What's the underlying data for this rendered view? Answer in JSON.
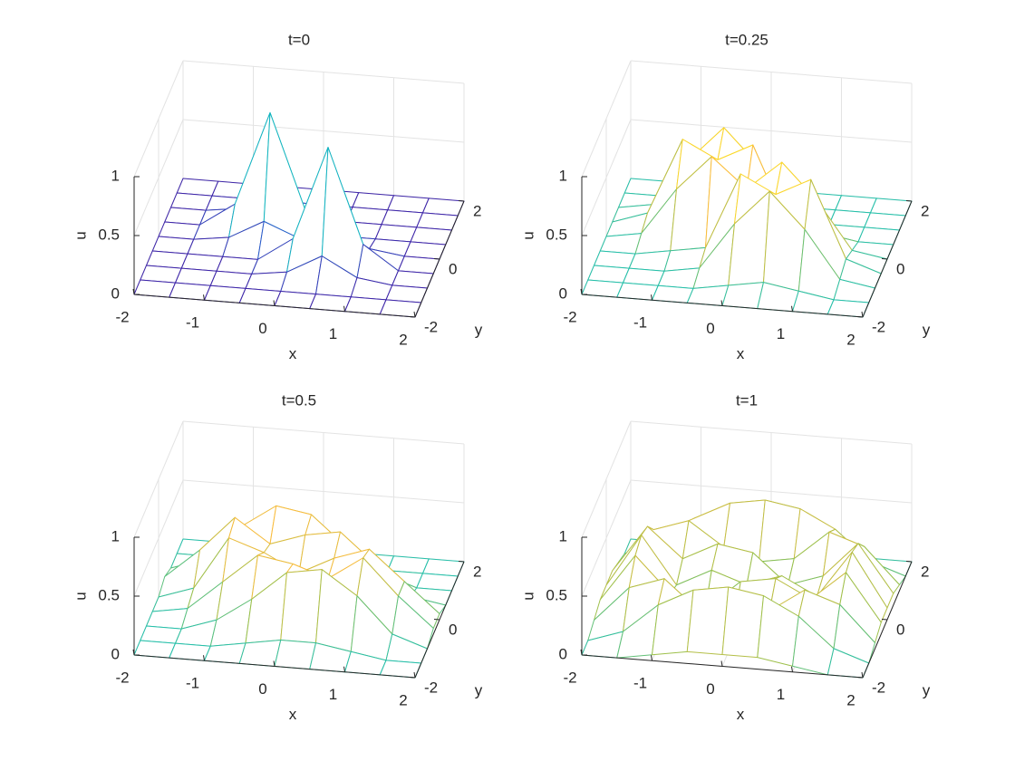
{
  "chart_data": [
    {
      "type": "mesh",
      "title": "t=0",
      "xlabel": "x",
      "ylabel": "y",
      "zlabel": "u",
      "x": [
        -2,
        -1.5,
        -1,
        -0.5,
        0,
        0.5,
        1,
        1.5,
        2
      ],
      "y": [
        -2,
        -1.5,
        -1,
        -0.5,
        0,
        0.5,
        1,
        1.5,
        2
      ],
      "z": [
        [
          0,
          0,
          0,
          0,
          0,
          0,
          0,
          0,
          0
        ],
        [
          0,
          0,
          0,
          0,
          0,
          0,
          0,
          0,
          0
        ],
        [
          0,
          0,
          0,
          0,
          0.04,
          0.2,
          0.04,
          0,
          0
        ],
        [
          0,
          0,
          0,
          0,
          0.2,
          1,
          0.2,
          0,
          0
        ],
        [
          0,
          0,
          0.04,
          0.2,
          0.08,
          0.2,
          0.04,
          0,
          0
        ],
        [
          0,
          0,
          0.2,
          1,
          0.2,
          0,
          0,
          0,
          0
        ],
        [
          0,
          0,
          0.04,
          0.2,
          0.04,
          0,
          0,
          0,
          0
        ],
        [
          0,
          0,
          0,
          0,
          0,
          0,
          0,
          0,
          0
        ],
        [
          0,
          0,
          0,
          0,
          0,
          0,
          0,
          0,
          0
        ]
      ],
      "xlim": [
        -2,
        2
      ],
      "ylim": [
        -2,
        2
      ],
      "zlim": [
        0,
        1
      ],
      "xticks": [
        -2,
        -1,
        0,
        1,
        2
      ],
      "yticks": [
        -2,
        0,
        2
      ],
      "zticks": [
        0,
        0.5,
        1
      ],
      "clim": [
        0,
        1
      ],
      "grid": true,
      "colormap": [
        "#3e26a8",
        "#1f83e0",
        "#12bfb9",
        "#9bc04b",
        "#fcbc3d",
        "#f9fb15"
      ]
    },
    {
      "type": "mesh",
      "title": "t=0.25",
      "xlabel": "x",
      "ylabel": "y",
      "zlabel": "u",
      "x": [
        -2,
        -1.5,
        -1,
        -0.5,
        0,
        0.5,
        1,
        1.5,
        2
      ],
      "y": [
        -2,
        -1.5,
        -1,
        -0.5,
        0,
        0.5,
        1,
        1.5,
        2
      ],
      "z": [
        [
          0,
          0,
          0,
          0,
          0,
          0,
          0,
          0,
          0
        ],
        [
          0,
          0,
          0,
          0,
          0.05,
          0.1,
          0.05,
          0,
          0
        ],
        [
          0,
          0,
          0,
          0.05,
          0.45,
          0.75,
          0.45,
          0.05,
          0
        ],
        [
          0,
          0,
          0.05,
          0.1,
          0.75,
          0.6,
          0.75,
          0.1,
          0
        ],
        [
          0,
          0.05,
          0.45,
          0.75,
          0.5,
          0.75,
          0.45,
          0.05,
          0
        ],
        [
          0,
          0.1,
          0.75,
          0.6,
          0.75,
          0.1,
          0.05,
          0,
          0
        ],
        [
          0,
          0.05,
          0.45,
          0.75,
          0.45,
          0.05,
          0,
          0,
          0
        ],
        [
          0,
          0,
          0.05,
          0.1,
          0.05,
          0,
          0,
          0,
          0
        ],
        [
          0,
          0,
          0,
          0,
          0,
          0,
          0,
          0,
          0
        ]
      ],
      "xlim": [
        -2,
        2
      ],
      "ylim": [
        -2,
        2
      ],
      "zlim": [
        0,
        1
      ],
      "xticks": [
        -2,
        -1,
        0,
        1,
        2
      ],
      "yticks": [
        -2,
        0,
        2
      ],
      "zticks": [
        0,
        0.5,
        1
      ],
      "clim": [
        -0.6,
        0.8
      ],
      "grid": true,
      "colormap": [
        "#3e26a8",
        "#1f83e0",
        "#12bfb9",
        "#9bc04b",
        "#fcbc3d",
        "#f9fb15"
      ]
    },
    {
      "type": "mesh",
      "title": "t=0.5",
      "xlabel": "x",
      "ylabel": "y",
      "zlabel": "u",
      "x": [
        -2,
        -1.5,
        -1,
        -0.5,
        0,
        0.5,
        1,
        1.5,
        2
      ],
      "y": [
        -2,
        -1.5,
        -1,
        -0.5,
        0,
        0.5,
        1,
        1.5,
        2
      ],
      "z": [
        [
          0,
          0,
          0,
          0,
          0,
          0,
          0,
          0,
          0
        ],
        [
          0,
          0,
          0,
          0.05,
          0.1,
          0.1,
          0.05,
          0,
          0
        ],
        [
          0,
          0,
          0.1,
          0.3,
          0.55,
          0.6,
          0.4,
          0.1,
          0
        ],
        [
          0,
          0.05,
          0.3,
          0.55,
          0.5,
          0.4,
          0.6,
          0.3,
          0.05
        ],
        [
          0,
          0.1,
          0.55,
          0.45,
          0.3,
          0.45,
          0.55,
          0.3,
          0.05
        ],
        [
          0.05,
          0.3,
          0.6,
          0.4,
          0.5,
          0.55,
          0.3,
          0.05,
          0
        ],
        [
          0,
          0.1,
          0.4,
          0.6,
          0.55,
          0.3,
          0.1,
          0,
          0
        ],
        [
          0,
          0,
          0.05,
          0.1,
          0.1,
          0.05,
          0,
          0,
          0
        ],
        [
          0,
          0,
          0,
          0,
          0,
          0,
          0,
          0,
          0
        ]
      ],
      "xlim": [
        -2,
        2
      ],
      "ylim": [
        -2,
        2
      ],
      "zlim": [
        0,
        1
      ],
      "xticks": [
        -2,
        -1,
        0,
        1,
        2
      ],
      "yticks": [
        -2,
        0,
        2
      ],
      "zticks": [
        0,
        0.5,
        1
      ],
      "clim": [
        -0.6,
        0.8
      ],
      "grid": true,
      "colormap": [
        "#3e26a8",
        "#1f83e0",
        "#12bfb9",
        "#9bc04b",
        "#fcbc3d",
        "#f9fb15"
      ]
    },
    {
      "type": "mesh",
      "title": "t=1",
      "xlabel": "x",
      "ylabel": "y",
      "zlabel": "u",
      "x": [
        -2,
        -1.5,
        -1,
        -0.5,
        0,
        0.5,
        1,
        1.5,
        2
      ],
      "y": [
        -2,
        -1.5,
        -1,
        -0.5,
        0,
        0.5,
        1,
        1.5,
        2
      ],
      "z": [
        [
          0,
          0,
          0.05,
          0.1,
          0.1,
          0.1,
          0.05,
          0,
          0
        ],
        [
          0,
          0.1,
          0.35,
          0.5,
          0.55,
          0.5,
          0.35,
          0.1,
          0
        ],
        [
          0.05,
          0.35,
          0.45,
          0.2,
          0.15,
          0.25,
          0.45,
          0.35,
          0.05
        ],
        [
          0.1,
          0.5,
          0.2,
          0.1,
          0.35,
          0.4,
          0.25,
          0.5,
          0.1
        ],
        [
          0.1,
          0.55,
          0.15,
          0.3,
          0.2,
          0.3,
          0.15,
          0.55,
          0.1
        ],
        [
          0.1,
          0.5,
          0.25,
          0.4,
          0.35,
          0.1,
          0.2,
          0.5,
          0.1
        ],
        [
          0.05,
          0.35,
          0.45,
          0.25,
          0.15,
          0.2,
          0.45,
          0.35,
          0.05
        ],
        [
          0,
          0.1,
          0.35,
          0.5,
          0.55,
          0.5,
          0.35,
          0.1,
          0
        ],
        [
          0,
          0,
          0.05,
          0.1,
          0.1,
          0.1,
          0.05,
          0,
          0
        ]
      ],
      "xlim": [
        -2,
        2
      ],
      "ylim": [
        -2,
        2
      ],
      "zlim": [
        0,
        1
      ],
      "xticks": [
        -2,
        -1,
        0,
        1,
        2
      ],
      "yticks": [
        -2,
        0,
        2
      ],
      "zticks": [
        0,
        0.5,
        1
      ],
      "clim": [
        -0.6,
        0.8
      ],
      "grid": true,
      "colormap": [
        "#3e26a8",
        "#1f83e0",
        "#12bfb9",
        "#9bc04b",
        "#fcbc3d",
        "#f9fb15"
      ]
    }
  ]
}
